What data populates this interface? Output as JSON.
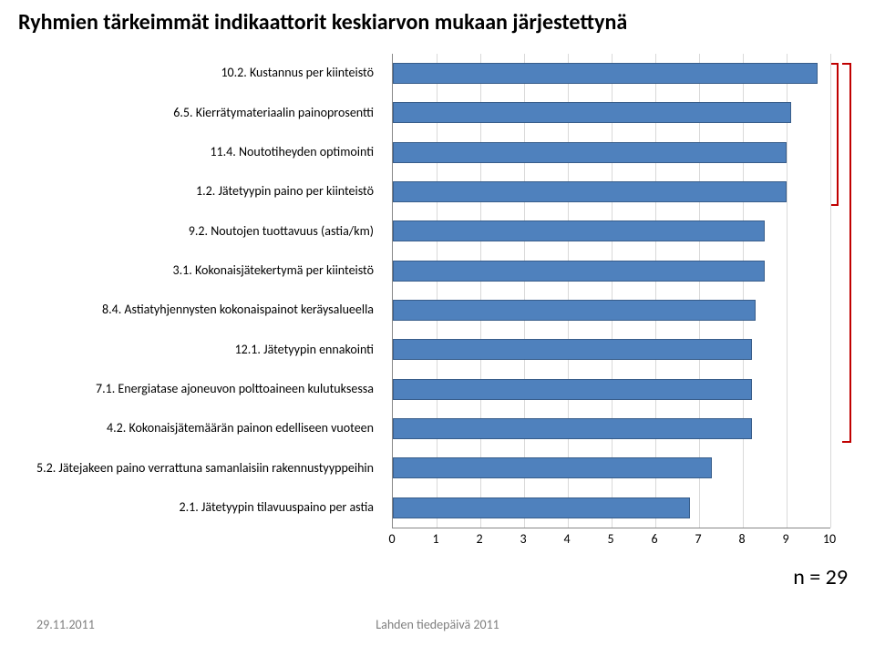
{
  "title": "Ryhmien tärkeimmät indikaattorit keskiarvon mukaan järjestettynä",
  "chart": {
    "type": "bar",
    "orientation": "horizontal",
    "xlim": [
      0,
      10
    ],
    "xtick_step": 1,
    "bar_color": "#4f81bd",
    "bar_border": "#385d8a",
    "grid_color": "#d9d9d9",
    "background_color": "#ffffff",
    "label_fontsize": 14,
    "title_fontsize": 24,
    "bars": [
      {
        "label": "10.2. Kustannus per kiinteistö",
        "value": 9.7
      },
      {
        "label": "6.5. Kierrätymateriaalin painoprosentti",
        "value": 9.1
      },
      {
        "label": "11.4. Noutotiheyden optimointi",
        "value": 9.0
      },
      {
        "label": "1.2. Jätetyypin paino per kiinteistö",
        "value": 9.0
      },
      {
        "label": "9.2. Noutojen tuottavuus (astia/km)",
        "value": 8.5
      },
      {
        "label": "3.1. Kokonaisjätekertymä per kiinteistö",
        "value": 8.5
      },
      {
        "label": "8.4. Astiatyhjennysten kokonaispainot keräysalueella",
        "value": 8.3
      },
      {
        "label": "12.1. Jätetyypin ennakointi",
        "value": 8.2
      },
      {
        "label": "7.1. Energiatase ajoneuvon polttoaineen kulutuksessa",
        "value": 8.2
      },
      {
        "label": "4.2. Kokonaisjätemäärän painon edelliseen vuoteen",
        "value": 8.2
      },
      {
        "label": "5.2. Jätejakeen paino verrattuna samanlaisiin rakennustyyppeihin",
        "value": 7.3
      },
      {
        "label": "2.1. Jätetyypin tilavuuspaino per astia",
        "value": 6.8
      }
    ]
  },
  "brackets": {
    "outer": {
      "from_bar": 0,
      "to_bar": 9,
      "color": "#c00000"
    },
    "small": {
      "from_bar": 0,
      "to_bar": 3,
      "color": "#c00000"
    }
  },
  "n_label": "n = 29",
  "footer": {
    "left": "29.11.2011",
    "center": "Lahden tiedepäivä 2011"
  }
}
